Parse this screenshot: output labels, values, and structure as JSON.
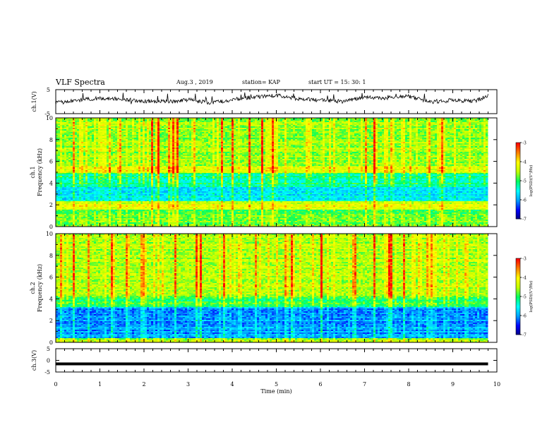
{
  "header": {
    "title": "VLF  Spectra",
    "date": "Aug.3  , 2019",
    "station": "station= KAP",
    "start_ut": "start  UT  =   15: 30: 1"
  },
  "chart_data": [
    {
      "type": "line",
      "panel": "ch1-waveform",
      "ylabel": "ch.1(V)",
      "ylim": [
        -5,
        5
      ],
      "yticks": [
        "5",
        "-5"
      ],
      "xlim": [
        0,
        10
      ],
      "description_level": "mean near 0 V with fluctuations roughly between -2 V and 3 V",
      "series": [
        {
          "x": [
            0,
            0.5,
            1,
            1.5,
            2,
            2.5,
            3,
            3.5,
            4,
            4.5,
            5,
            5.5,
            6,
            6.5,
            7,
            7.5,
            8,
            8.5,
            9,
            9.5,
            9.8
          ],
          "values": [
            -0.5,
            0.5,
            1.5,
            1,
            0.2,
            0,
            0.8,
            -0.5,
            0.8,
            2,
            2.6,
            1.2,
            0.6,
            0.1,
            1.8,
            1.5,
            2.2,
            -0.2,
            0.5,
            0.2,
            2.5
          ]
        }
      ]
    },
    {
      "type": "heatmap",
      "panel": "ch1-spectrogram",
      "ylabel_channel": "ch.1",
      "ylabel": "Frequency  (kHz)",
      "ylim": [
        0,
        10
      ],
      "yticks": [
        "0",
        "2",
        "4",
        "6",
        "8",
        "10"
      ],
      "xlim": [
        0,
        10
      ],
      "colorbar": {
        "label": "log(PSD)(V²/Hz)",
        "range": [
          -7,
          -3
        ],
        "ticks": [
          "-3",
          "-4",
          "-5",
          "-6",
          "-7"
        ]
      },
      "bands": [
        {
          "range_khz": [
            0,
            1.6
          ],
          "log_psd": -4.8
        },
        {
          "range_khz": [
            1.6,
            2.4
          ],
          "log_psd": -4.3
        },
        {
          "range_khz": [
            2.4,
            3.6
          ],
          "log_psd": -5.6
        },
        {
          "range_khz": [
            3.6,
            5.0
          ],
          "log_psd": -5.2
        },
        {
          "range_khz": [
            5.0,
            5.6
          ],
          "log_psd": -4.3
        },
        {
          "range_khz": [
            5.6,
            10
          ],
          "log_psd": -4.6
        }
      ]
    },
    {
      "type": "heatmap",
      "panel": "ch2-spectrogram",
      "ylabel_channel": "ch.2",
      "ylabel": "Frequency  (kHz)",
      "ylim": [
        0,
        10
      ],
      "yticks": [
        "0",
        "2",
        "4",
        "6",
        "8",
        "10"
      ],
      "xlim": [
        0,
        10
      ],
      "colorbar": {
        "label": "log(PSD)(V²/Hz)",
        "range": [
          -7,
          -3
        ],
        "ticks": [
          "-3",
          "-4",
          "-5",
          "-6",
          "-7"
        ]
      },
      "bands": [
        {
          "range_khz": [
            0,
            0.4
          ],
          "log_psd": -4.6
        },
        {
          "range_khz": [
            0.4,
            3.2
          ],
          "log_psd": -6.0
        },
        {
          "range_khz": [
            3.2,
            4.2
          ],
          "log_psd": -5.0
        },
        {
          "range_khz": [
            4.2,
            5.0
          ],
          "log_psd": -4.6
        },
        {
          "range_khz": [
            5.0,
            10
          ],
          "log_psd": -4.5
        }
      ]
    },
    {
      "type": "line",
      "panel": "ch3-waveform",
      "ylabel": "ch.3(V)",
      "ylim": [
        -5,
        5
      ],
      "yticks": [
        "5",
        "0",
        "-5"
      ],
      "xlim": [
        0,
        10
      ],
      "xlabel": "Time  (min)",
      "xticks": [
        "0",
        "1",
        "2",
        "3",
        "4",
        "5",
        "6",
        "7",
        "8",
        "9",
        "10"
      ],
      "series": [
        {
          "x": [
            0,
            9.8
          ],
          "values": [
            -1.5,
            -1.5
          ]
        }
      ]
    }
  ],
  "colors": {
    "colormap": [
      "#000080",
      "#0000ff",
      "#00a0ff",
      "#00ffff",
      "#00ff60",
      "#c0ff00",
      "#ffff00",
      "#ff8000",
      "#ff0000",
      "#ffffff"
    ],
    "line": "#000000"
  }
}
